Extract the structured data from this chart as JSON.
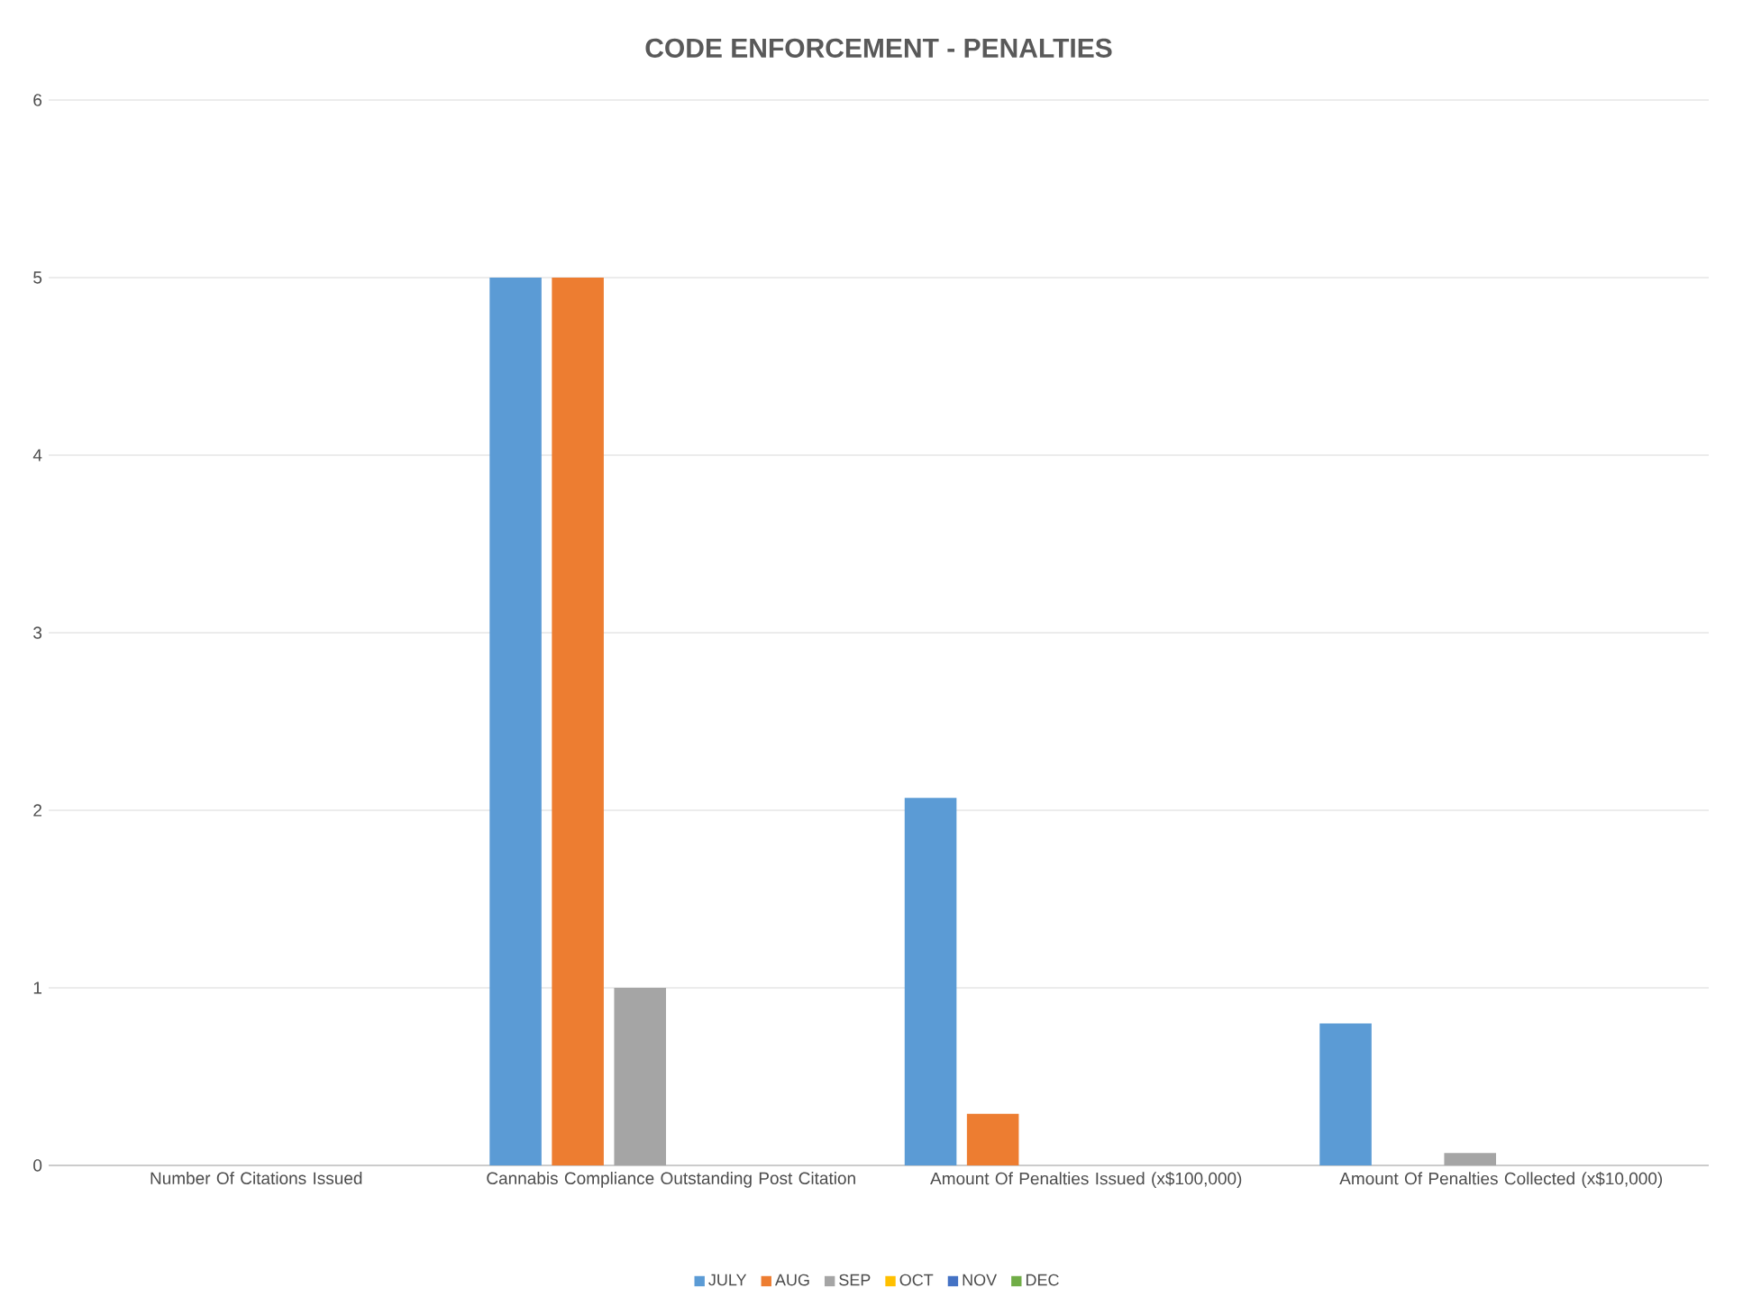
{
  "chart_data": {
    "type": "bar",
    "title": "CODE ENFORCEMENT - PENALTIES",
    "categories": [
      "Number Of Citations Issued",
      "Cannabis Compliance Outstanding Post Citation",
      "Amount Of Penalties Issued (x$100,000)",
      "Amount Of Penalties Collected (x$10,000)"
    ],
    "series": [
      {
        "name": "JULY",
        "color": "#5b9bd5",
        "values": [
          0,
          5,
          2.07,
          0.8
        ]
      },
      {
        "name": "AUG",
        "color": "#ed7d31",
        "values": [
          0,
          5,
          0.29,
          0
        ]
      },
      {
        "name": "SEP",
        "color": "#a5a5a5",
        "values": [
          0,
          1,
          0,
          0.07
        ]
      },
      {
        "name": "OCT",
        "color": "#ffc000",
        "values": [
          0,
          0,
          0,
          0
        ]
      },
      {
        "name": "NOV",
        "color": "#4472c4",
        "values": [
          0,
          0,
          0,
          0
        ]
      },
      {
        "name": "DEC",
        "color": "#70ad47",
        "values": [
          0,
          0,
          0,
          0
        ]
      }
    ],
    "ylim": [
      0,
      6
    ],
    "yticks": [
      0,
      1,
      2,
      3,
      4,
      5,
      6
    ],
    "grid": "y",
    "legend": "bottom"
  }
}
